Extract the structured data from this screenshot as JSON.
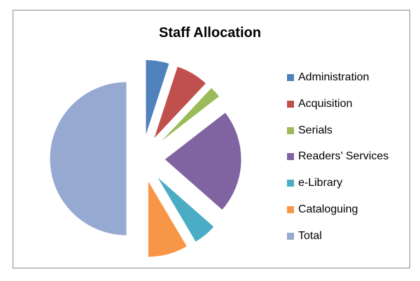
{
  "chart_data": {
    "type": "pie",
    "title": "Staff Allocation",
    "legend_position": "right",
    "exploded": true,
    "categories": [
      "Administration",
      "Acquisition",
      "Serials",
      "Readers’ Services",
      "e-Library",
      "Cataloguing",
      "Total"
    ],
    "values": [
      5,
      7,
      2.5,
      22,
      5,
      8.5,
      50
    ],
    "colors": [
      "#4F81BD",
      "#C0504D",
      "#9BBB59",
      "#8064A2",
      "#4BACC6",
      "#F79646",
      "#95A9D1"
    ]
  }
}
